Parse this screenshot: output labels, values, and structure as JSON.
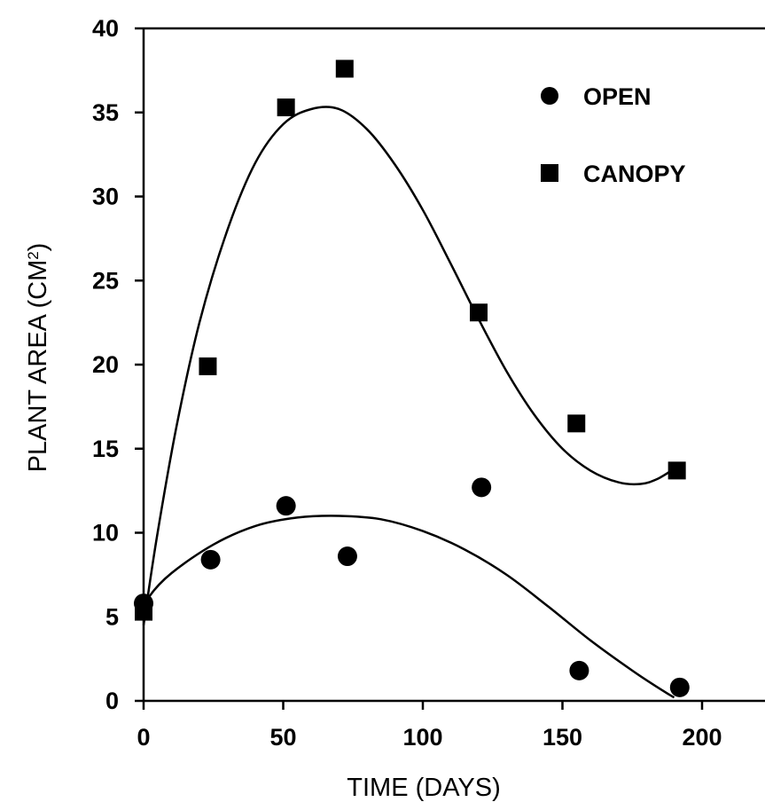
{
  "chart_data": {
    "type": "scatter",
    "xlabel": "TIME (DAYS)",
    "ylabel_main": "PLANT AREA (CM",
    "ylabel_sup": "2",
    "ylabel_close": ")",
    "xlim": [
      0,
      220
    ],
    "ylim": [
      0,
      40
    ],
    "xticks": [
      0,
      50,
      100,
      150,
      200
    ],
    "yticks": [
      0,
      5,
      10,
      15,
      20,
      25,
      30,
      35,
      40
    ],
    "grid": false,
    "legend_position": "top-right",
    "series": [
      {
        "name": "OPEN",
        "marker": "circle",
        "points": [
          [
            0,
            5.8
          ],
          [
            24,
            8.4
          ],
          [
            51,
            11.6
          ],
          [
            73,
            8.6
          ],
          [
            121,
            12.7
          ],
          [
            156,
            1.8
          ],
          [
            192,
            0.8
          ]
        ],
        "fit_curve": [
          [
            -1,
            5.0
          ],
          [
            2,
            6.2
          ],
          [
            10,
            7.6
          ],
          [
            25,
            9.3
          ],
          [
            40,
            10.4
          ],
          [
            55,
            10.9
          ],
          [
            70,
            11.0
          ],
          [
            85,
            10.8
          ],
          [
            100,
            10.1
          ],
          [
            115,
            9.0
          ],
          [
            130,
            7.5
          ],
          [
            145,
            5.6
          ],
          [
            160,
            3.6
          ],
          [
            175,
            1.8
          ],
          [
            186,
            0.6
          ],
          [
            190,
            0.2
          ]
        ]
      },
      {
        "name": "CANOPY",
        "marker": "square",
        "points": [
          [
            0,
            5.3
          ],
          [
            23,
            19.9
          ],
          [
            51,
            35.3
          ],
          [
            72,
            37.6
          ],
          [
            120,
            23.1
          ],
          [
            155,
            16.5
          ],
          [
            191,
            13.7
          ]
        ],
        "fit_curve": [
          [
            0,
            4.5
          ],
          [
            5,
            10.0
          ],
          [
            12,
            16.5
          ],
          [
            20,
            22.5
          ],
          [
            30,
            28.0
          ],
          [
            40,
            32.0
          ],
          [
            50,
            34.3
          ],
          [
            60,
            35.2
          ],
          [
            70,
            35.2
          ],
          [
            80,
            34.0
          ],
          [
            90,
            31.9
          ],
          [
            100,
            29.2
          ],
          [
            110,
            26.0
          ],
          [
            120,
            22.7
          ],
          [
            130,
            19.6
          ],
          [
            140,
            17.0
          ],
          [
            150,
            15.0
          ],
          [
            160,
            13.7
          ],
          [
            170,
            13.0
          ],
          [
            178,
            12.9
          ],
          [
            184,
            13.2
          ],
          [
            190,
            13.8
          ]
        ]
      }
    ]
  }
}
